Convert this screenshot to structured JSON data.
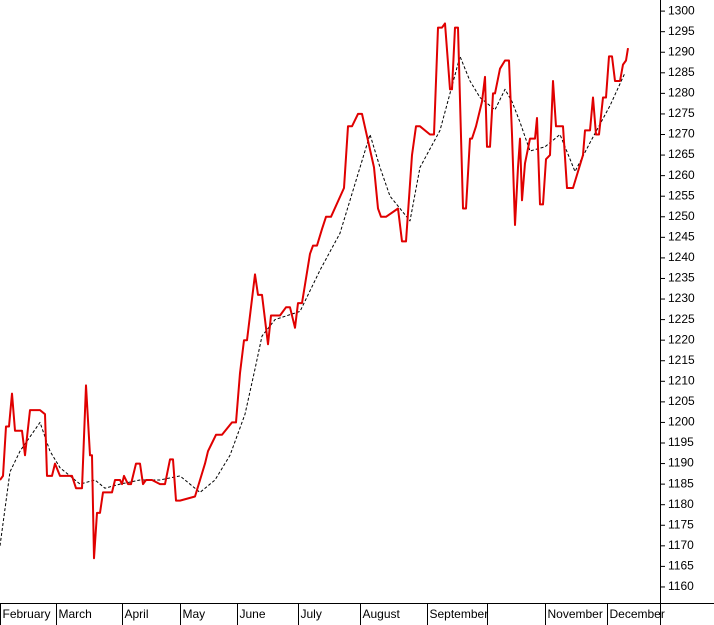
{
  "chart_data": {
    "type": "line",
    "xlim": [
      0,
      330
    ],
    "ylim": [
      1156.1,
      1302.7
    ],
    "xticks": [
      {
        "value": 0,
        "label": "February"
      },
      {
        "value": 28,
        "label": "March"
      },
      {
        "value": 61,
        "label": "April"
      },
      {
        "value": 90,
        "label": "May"
      },
      {
        "value": 118.5,
        "label": "June"
      },
      {
        "value": 149,
        "label": "July"
      },
      {
        "value": 180,
        "label": "August"
      },
      {
        "value": 213.5,
        "label": "September"
      },
      {
        "value": 243.5,
        "label": null
      },
      {
        "value": 272.5,
        "label": "November"
      },
      {
        "value": 303.5,
        "label": "December"
      }
    ],
    "yticks": [
      1160,
      1165,
      1170,
      1175,
      1180,
      1185,
      1190,
      1195,
      1200,
      1205,
      1210,
      1215,
      1220,
      1225,
      1230,
      1235,
      1240,
      1245,
      1250,
      1255,
      1260,
      1265,
      1270,
      1275,
      1280,
      1285,
      1290,
      1295,
      1300
    ],
    "series": [
      {
        "color": "#e00000",
        "style": "solid",
        "x": [
          0,
          1.5,
          3,
          4.5,
          6,
          7.5,
          11,
          12.5,
          15,
          20,
          22.5,
          23.5,
          26,
          27.5,
          30,
          36,
          38,
          41,
          43,
          45,
          46,
          47,
          48.5,
          50,
          51.5,
          56,
          57.5,
          60,
          61,
          62,
          64,
          65.5,
          68,
          70,
          71.5,
          73,
          76,
          80,
          82.5,
          85,
          86.5,
          88,
          90,
          97.5,
          102.5,
          104,
          106,
          108,
          111,
          116,
          118,
          120,
          122,
          123.5,
          126,
          127.5,
          129,
          131,
          134,
          135.5,
          137,
          140,
          143,
          145,
          147.5,
          149,
          151,
          155,
          156.5,
          158.5,
          161,
          163,
          165.5,
          172,
          174,
          176,
          179,
          181,
          187,
          189,
          190.5,
          193,
          199,
          201,
          203,
          206,
          208,
          210,
          215,
          217,
          219,
          221,
          222.5,
          225,
          226,
          227.5,
          229,
          231.5,
          233,
          235,
          236,
          238,
          241,
          242.5,
          243.5,
          245,
          246.5,
          247.5,
          250,
          252.5,
          254.5,
          256,
          257.5,
          259,
          260,
          261,
          262.5,
          265,
          267.5,
          268.5,
          270,
          271.5,
          273,
          275,
          276.5,
          278,
          279.5,
          281.5,
          283.5,
          286.5,
          289,
          291.5,
          292.5,
          295,
          296.5,
          298,
          299.5,
          301.5,
          303,
          304.5,
          306,
          307.5,
          310,
          311.5,
          313,
          314
        ],
        "values": [
          1186,
          1187,
          1199,
          1199,
          1207,
          1198,
          1198,
          1192,
          1203,
          1203,
          1202,
          1187,
          1187,
          1190,
          1187,
          1187,
          1184,
          1184,
          1209,
          1192,
          1192,
          1167,
          1178,
          1178,
          1183,
          1183,
          1186,
          1186,
          1185,
          1187,
          1185,
          1185,
          1190,
          1190,
          1185,
          1186,
          1186,
          1185,
          1185,
          1191,
          1191,
          1181,
          1181,
          1182,
          1190,
          1193,
          1195,
          1197,
          1197,
          1200,
          1200,
          1212,
          1220,
          1220,
          1230,
          1236,
          1231,
          1231,
          1219,
          1226,
          1226,
          1226,
          1228,
          1228,
          1223,
          1229,
          1229,
          1241,
          1243,
          1243,
          1247,
          1250,
          1250,
          1257,
          1272,
          1272,
          1275,
          1275,
          1262,
          1252,
          1250,
          1250,
          1252,
          1244,
          1244,
          1265,
          1272,
          1272,
          1270,
          1270,
          1296,
          1296,
          1297,
          1281,
          1281,
          1296,
          1296,
          1252,
          1252,
          1269,
          1269,
          1272,
          1278,
          1284,
          1267,
          1267,
          1280,
          1280,
          1286,
          1288,
          1288,
          1270,
          1248,
          1262,
          1269,
          1254,
          1263,
          1269,
          1269,
          1274,
          1253,
          1253,
          1264,
          1265,
          1283,
          1272,
          1272,
          1272,
          1257,
          1257,
          1261,
          1265,
          1271,
          1271,
          1279,
          1270,
          1270,
          1279,
          1279,
          1289,
          1289,
          1283,
          1283,
          1287,
          1288,
          1291
        ]
      },
      {
        "color": "#000000",
        "style": "dashed",
        "x": [
          0,
          5,
          10,
          20,
          25,
          30,
          40,
          47.5,
          52.5,
          60,
          70,
          80,
          90,
          100,
          107.5,
          115,
          122.5,
          127.5,
          131,
          137.5,
          150,
          160,
          170,
          177.5,
          185,
          190,
          195,
          200,
          205,
          210,
          220,
          225,
          230,
          235,
          240,
          247.5,
          252.5,
          256,
          260,
          265,
          272.5,
          280,
          287.5,
          295,
          305,
          312.5
        ],
        "values": [
          1170,
          1188,
          1193,
          1200,
          1193,
          1189,
          1185,
          1186,
          1184,
          1185,
          1186,
          1186,
          1187,
          1183,
          1186,
          1192,
          1202,
          1213,
          1221,
          1225,
          1227,
          1237,
          1246,
          1258,
          1270,
          1262,
          1255,
          1252,
          1249,
          1262,
          1271,
          1280,
          1289,
          1283,
          1279,
          1276,
          1281,
          1278,
          1273,
          1266,
          1267,
          1270,
          1261,
          1268,
          1277,
          1285
        ]
      }
    ]
  }
}
